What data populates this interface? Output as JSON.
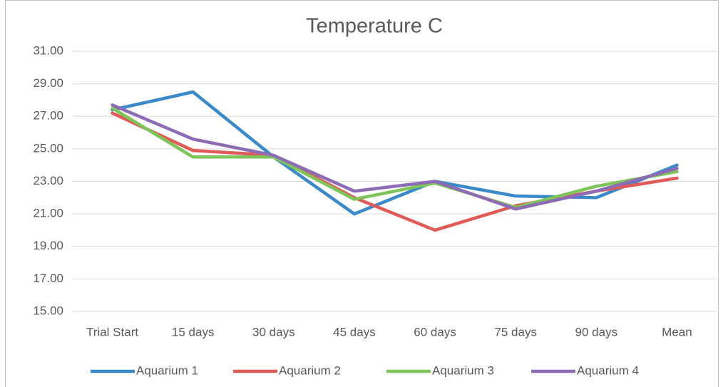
{
  "chart_data": {
    "type": "line",
    "title": "Temperature C",
    "categories": [
      "Trial Start",
      "15 days",
      "30 days",
      "45 days",
      "60 days",
      "75 days",
      "90 days",
      "Mean"
    ],
    "series": [
      {
        "name": "Aquarium 1",
        "color": "#3a89c9",
        "values": [
          27.4,
          28.5,
          24.5,
          21.0,
          23.0,
          22.1,
          22.0,
          24.0
        ]
      },
      {
        "name": "Aquarium 2",
        "color": "#e05a57",
        "values": [
          27.2,
          24.9,
          24.6,
          22.0,
          20.0,
          21.5,
          22.4,
          23.2
        ]
      },
      {
        "name": "Aquarium 3",
        "color": "#7fc45a",
        "values": [
          27.5,
          24.5,
          24.5,
          21.9,
          22.9,
          21.4,
          22.7,
          23.6
        ]
      },
      {
        "name": "Aquarium 4",
        "color": "#8e6bb5",
        "values": [
          27.7,
          25.6,
          24.6,
          22.4,
          23.0,
          21.3,
          22.4,
          23.8
        ]
      }
    ],
    "ylim": [
      15,
      31
    ],
    "yticks": [
      {
        "value": 15,
        "label": "15.00"
      },
      {
        "value": 17,
        "label": "17.00"
      },
      {
        "value": 19,
        "label": "19.00"
      },
      {
        "value": 21,
        "label": "21.00"
      },
      {
        "value": 23,
        "label": "23.00"
      },
      {
        "value": 25,
        "label": "25.00"
      },
      {
        "value": 27,
        "label": "27.00"
      },
      {
        "value": 29,
        "label": "29.00"
      },
      {
        "value": 31,
        "label": "31.00"
      }
    ],
    "grid": true,
    "legend": "bottom"
  }
}
